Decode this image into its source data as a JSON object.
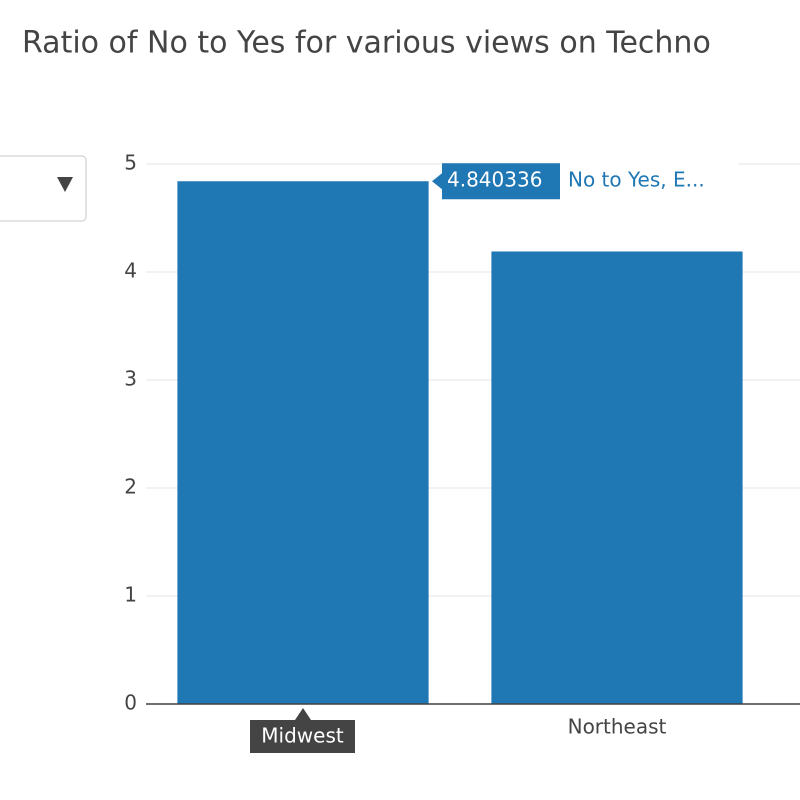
{
  "chart_data": {
    "type": "bar",
    "title": "Ratio of No to Yes for various views on Techno",
    "categories": [
      "Midwest",
      "Northeast"
    ],
    "series": [
      {
        "name": "No to Yes, E...",
        "color": "#1f77b4",
        "values": [
          4.840336,
          4.19
        ]
      }
    ],
    "ylim": [
      0,
      5
    ],
    "yticks": [
      0,
      1,
      2,
      3,
      4,
      5
    ],
    "grid": true
  }
}
